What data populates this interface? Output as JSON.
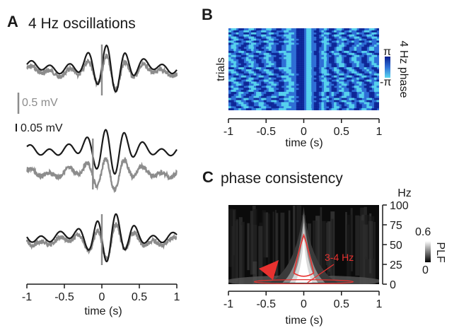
{
  "chart_data": [
    {
      "panel": "A",
      "type": "line",
      "title": "4 Hz oscillations",
      "xlabel": "time (s)",
      "xlim": [
        -1,
        1
      ],
      "xticks": [
        "-1",
        "-0.5",
        "0",
        "0.5",
        "1"
      ],
      "scale_bars": {
        "gray": "0.5 mV",
        "black": "0.05 mV"
      },
      "series": [
        {
          "color": "#1a1a1a"
        },
        {
          "color": "#8c8c8c"
        }
      ],
      "traces": 3,
      "oscillation_frequency_hz": 4
    },
    {
      "panel": "B",
      "type": "heatmap",
      "xlabel": "time (s)",
      "ylabel": "trials",
      "xlim": [
        -1,
        1
      ],
      "xticks": [
        "-1",
        "-0.5",
        "0",
        "0.5",
        "1"
      ],
      "colorbar": {
        "label": "4 Hz phase",
        "ticks": [
          "π",
          "-π"
        ],
        "range": [
          -3.1416,
          3.1416
        ],
        "colors": [
          "#0a1f8f",
          "#2f6fd6",
          "#5ad8ef"
        ]
      },
      "n_trials": 40
    },
    {
      "panel": "C",
      "type": "heatmap",
      "title": "phase consistency",
      "xlabel": "time (s)",
      "ylabel": "Hz",
      "xlim": [
        -1,
        1
      ],
      "ylim": [
        0,
        100
      ],
      "xticks": [
        "-1",
        "-0.5",
        "0",
        "0.5",
        "1"
      ],
      "yticks": [
        "0",
        "25",
        "50",
        "75",
        "100"
      ],
      "colorbar": {
        "label": "PLF",
        "ticks": [
          "0.6",
          "0"
        ],
        "range": [
          0,
          0.6
        ]
      },
      "annotation": {
        "text": "3-4 Hz",
        "color": "#e8312f"
      },
      "marker_color": "#e8312f"
    }
  ]
}
